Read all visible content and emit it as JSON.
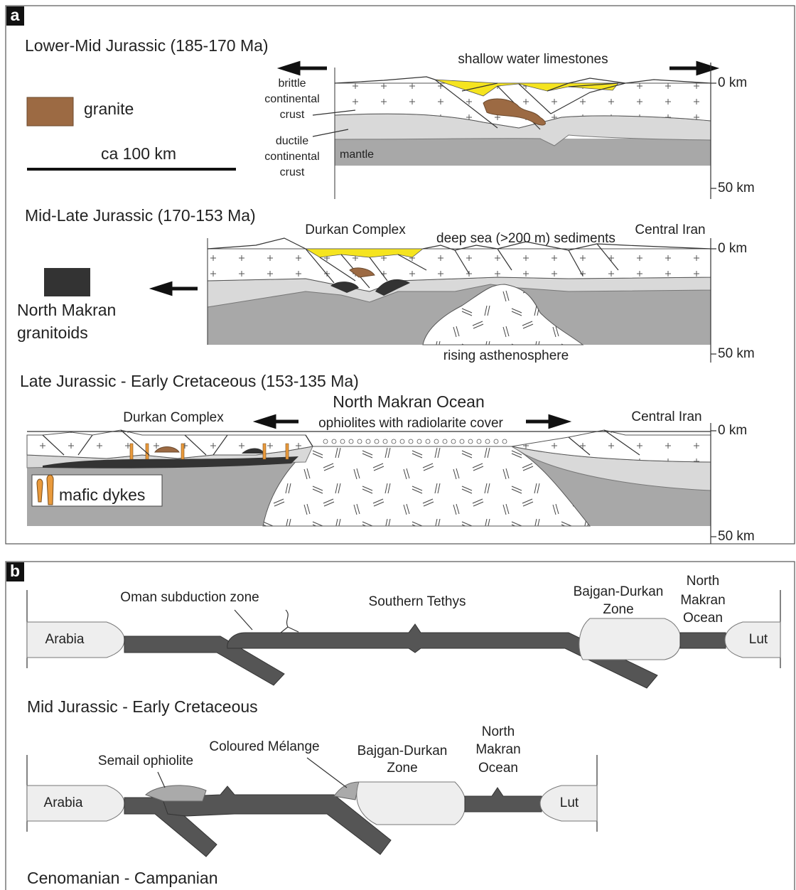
{
  "panel_a": {
    "label": "a",
    "scale_bar": "ca 100 km",
    "legend_granite": "granite",
    "legend_granitoids": [
      "North Makran",
      "granitoids"
    ],
    "section_1": {
      "title": "Lower-Mid Jurassic (185-170 Ma)",
      "depth_top": "0 km",
      "depth_bottom": "50 km",
      "limestones": "shallow water limestones",
      "brittle": [
        "brittle",
        "continental",
        "crust"
      ],
      "ductile": [
        "ductile",
        "continental",
        "crust"
      ],
      "mantle": "mantle"
    },
    "section_2": {
      "title": "Mid-Late Jurassic (170-153 Ma)",
      "depth_top": "0 km",
      "depth_bottom": "50 km",
      "durkan": "Durkan Complex",
      "sediments": "deep sea (>200 m) sediments",
      "central_iran": "Central Iran",
      "asthenosphere": "rising asthenosphere"
    },
    "section_3": {
      "title": "Late Jurassic - Early Cretaceous (153-135 Ma)",
      "depth_top": "0 km",
      "depth_bottom": "50 km",
      "ocean": "North Makran Ocean",
      "ophiolites": "ophiolites with radiolarite cover",
      "durkan": "Durkan Complex",
      "central_iran": "Central Iran",
      "dykes": "mafic dykes"
    }
  },
  "panel_b": {
    "label": "b",
    "scene_1": {
      "title": "Mid Jurassic - Early Cretaceous",
      "oman": "Oman subduction zone",
      "tethys": "Southern Tethys",
      "bajgan": [
        "Bajgan-Durkan",
        "Zone"
      ],
      "ocean": [
        "North",
        "Makran",
        "Ocean"
      ],
      "arabia": "Arabia",
      "lut": "Lut"
    },
    "scene_2": {
      "title": "Cenomanian - Campanian",
      "semail": "Semail ophiolite",
      "melange": "Coloured Mélange",
      "bajgan": [
        "Bajgan-Durkan",
        "Zone"
      ],
      "ocean": [
        "North",
        "Makran",
        "Ocean"
      ],
      "arabia": "Arabia",
      "lut": "Lut"
    }
  }
}
